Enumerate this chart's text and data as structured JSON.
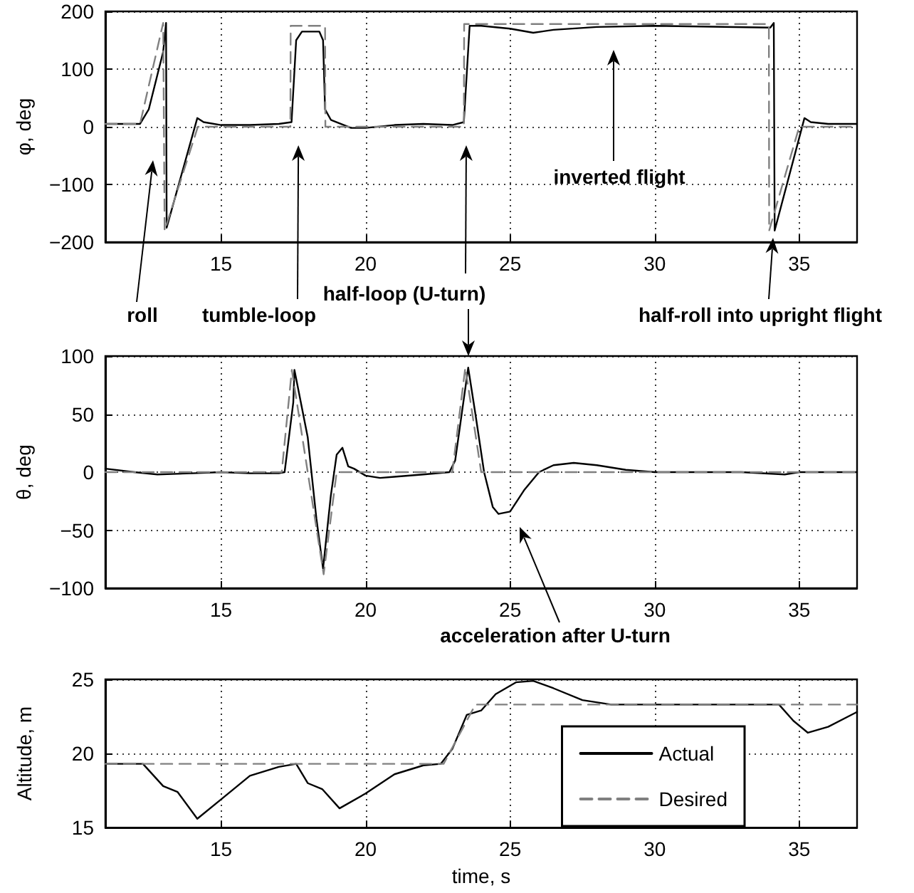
{
  "chart_data": [
    {
      "type": "line",
      "ylabel": "φ, deg",
      "xlim": [
        11,
        37
      ],
      "xticks": [
        15,
        20,
        25,
        30,
        35
      ],
      "ylim": [
        -200,
        200
      ],
      "yticks": [
        -200,
        -100,
        0,
        100,
        200
      ],
      "grid": true,
      "marker": "none",
      "annotations": [
        "roll",
        "tumble-loop",
        "half-loop (U-turn)",
        "inverted flight",
        "half-roll into upright flight"
      ],
      "series": [
        {
          "color": "#000000",
          "line_style": "solid",
          "x": [
            11,
            12.2,
            12.5,
            13.0,
            13.1,
            13.12,
            14.18,
            14.4,
            15,
            16,
            17,
            17.44,
            17.6,
            17.8,
            18.4,
            18.53,
            18.6,
            18.8,
            19,
            19.5,
            20,
            21,
            22,
            23,
            23.4,
            23.6,
            24,
            25,
            25.8,
            26.5,
            28,
            30,
            34,
            34.12,
            34.15,
            35.18,
            35.4,
            36,
            37
          ],
          "values": [
            5,
            5,
            30,
            130,
            180,
            -175,
            15,
            8,
            3,
            3,
            5,
            8,
            150,
            165,
            165,
            150,
            30,
            12,
            8,
            -2,
            -2,
            3,
            5,
            3,
            8,
            175,
            175,
            170,
            163,
            168,
            173,
            175,
            172,
            180,
            -180,
            15,
            8,
            5,
            5
          ]
        },
        {
          "color": "#808080",
          "line_style": "dashed",
          "x": [
            11,
            12.2,
            13.0,
            13.05,
            14.2,
            17.4,
            17.41,
            18.6,
            18.61,
            23.4,
            23.41,
            33.95,
            33.96,
            35.0,
            37
          ],
          "values": [
            5,
            5,
            180,
            -180,
            0,
            0,
            175,
            175,
            0,
            0,
            178,
            178,
            -180,
            0,
            0
          ]
        }
      ]
    },
    {
      "type": "line",
      "ylabel": "θ, deg",
      "xlim": [
        11,
        37
      ],
      "xticks": [
        15,
        20,
        25,
        30,
        35
      ],
      "ylim": [
        -100,
        100
      ],
      "yticks": [
        -100,
        -50,
        0,
        50,
        100
      ],
      "grid": true,
      "marker": "none",
      "annotations": [
        "acceleration after U-turn"
      ],
      "series": [
        {
          "color": "#000000",
          "line_style": "solid",
          "x": [
            11,
            12,
            12.8,
            14,
            15,
            16,
            17,
            17.2,
            17.5,
            17.54,
            18,
            18.3,
            18.53,
            18.8,
            19.0,
            19.2,
            19.4,
            19.6,
            20,
            20.5,
            21,
            22,
            22.9,
            23.1,
            23.55,
            23.8,
            24.1,
            24.4,
            24.6,
            25,
            25.5,
            26,
            26.5,
            27.2,
            28,
            29,
            30,
            33,
            34.5,
            35,
            37
          ],
          "values": [
            3,
            0,
            -2,
            -1,
            0,
            -1,
            -1,
            0,
            60,
            88,
            30,
            -40,
            -83,
            -20,
            15,
            21,
            5,
            3,
            -3,
            -5,
            -4,
            -2,
            0,
            10,
            90,
            50,
            0,
            -30,
            -36,
            -34,
            -15,
            0,
            6,
            8,
            6,
            2,
            0,
            0,
            -2,
            0,
            0
          ]
        },
        {
          "color": "#808080",
          "line_style": "dashed",
          "x": [
            11,
            17.1,
            17.45,
            18.55,
            19,
            23.0,
            23.45,
            24.0,
            37
          ],
          "values": [
            0,
            0,
            88,
            -88,
            0,
            0,
            90,
            0,
            0
          ]
        }
      ]
    },
    {
      "type": "line",
      "xlabel": "time, s",
      "ylabel": "Altitude, m",
      "xlim": [
        11,
        37
      ],
      "xticks": [
        15,
        20,
        25,
        30,
        35
      ],
      "ylim": [
        15,
        25
      ],
      "yticks": [
        15,
        20,
        25
      ],
      "grid": true,
      "marker": "none",
      "legend": "bottom right",
      "series": [
        {
          "name": "Actual",
          "color": "#000000",
          "line_style": "solid",
          "x": [
            11,
            12.3,
            13.0,
            13.5,
            14.18,
            15,
            16,
            17,
            17.6,
            18,
            18.5,
            19.1,
            20,
            21,
            22,
            22.6,
            23,
            23.5,
            24,
            24.5,
            25.2,
            25.8,
            26.5,
            27.5,
            28.5,
            30,
            34.3,
            34.8,
            35.3,
            36,
            37
          ],
          "values": [
            19.3,
            19.3,
            17.8,
            17.4,
            15.6,
            16.9,
            18.5,
            19.1,
            19.3,
            18.0,
            17.6,
            16.3,
            17.3,
            18.6,
            19.2,
            19.3,
            20.3,
            22.6,
            22.9,
            24,
            24.8,
            24.9,
            24.4,
            23.6,
            23.3,
            23.3,
            23.3,
            22.2,
            21.4,
            21.8,
            22.8
          ]
        },
        {
          "name": "Desired",
          "color": "#808080",
          "line_style": "dashed",
          "x": [
            11,
            22.7,
            23.8,
            37
          ],
          "values": [
            19.3,
            19.3,
            23.3,
            23.3
          ]
        }
      ]
    }
  ]
}
